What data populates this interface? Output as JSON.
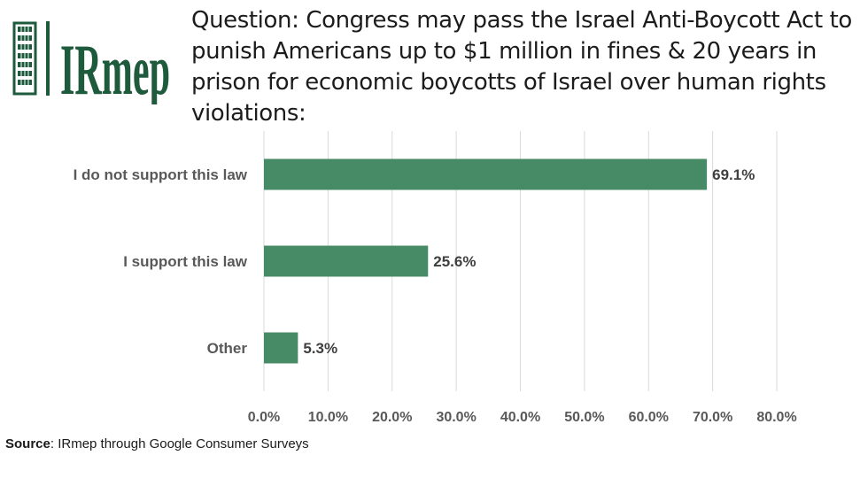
{
  "logo": {
    "text": "IRmep",
    "color": "#1e5a3c"
  },
  "question": {
    "label": "Question",
    "text": ": Congress may pass the Israel Anti-Boycott Act to punish Americans up to $1 million in fines & 20 years in prison for economic boycotts of Israel over human rights violations:"
  },
  "chart_data": {
    "type": "bar",
    "orientation": "horizontal",
    "categories": [
      "I do not support this law",
      "I support this law",
      "Other"
    ],
    "values": [
      69.1,
      25.6,
      5.3
    ],
    "value_labels": [
      "69.1%",
      "25.6%",
      "5.3%"
    ],
    "xlim": [
      0,
      80
    ],
    "x_ticks": [
      0,
      10,
      20,
      30,
      40,
      50,
      60,
      70,
      80
    ],
    "x_tick_labels": [
      "0.0%",
      "10.0%",
      "20.0%",
      "30.0%",
      "40.0%",
      "50.0%",
      "60.0%",
      "70.0%",
      "80.0%"
    ],
    "grid": true,
    "bar_color": "#468b65",
    "grid_color": "#d9d9d9",
    "label_color": "#595959"
  },
  "source": {
    "label": "Source",
    "text": ": IRmep through Google Consumer Surveys"
  }
}
